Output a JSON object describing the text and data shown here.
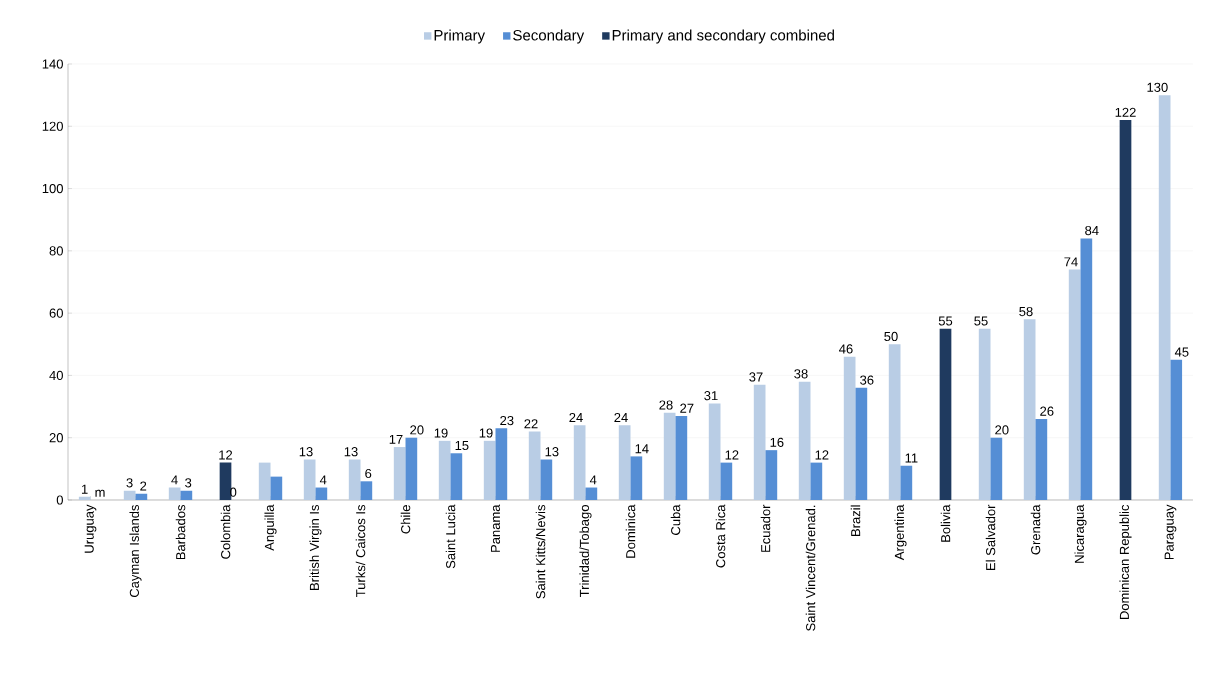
{
  "chart_data": {
    "type": "bar",
    "categories": [
      "Uruguay",
      "Cayman Islands",
      "Barbados",
      "Colombia",
      "Anguilla",
      "British Virgin Is",
      "Turks/ Caicos Is",
      "Chile",
      "Saint Lucia",
      "Panama",
      "Saint Kitts/Nevis",
      "Trinidad/Tobago",
      "Dominica",
      "Cuba",
      "Costa Rica",
      "Ecuador",
      "Saint Vincent/Grenad.",
      "Brazil",
      "Argentina",
      "Bolivia",
      "El Salvador",
      "Grenada",
      "Nicaragua",
      "Dominican Republic",
      "Paraguay"
    ],
    "series": [
      {
        "name": "Primary",
        "color": "#b9cde5",
        "values": [
          1,
          3,
          4,
          null,
          12,
          13,
          13,
          17,
          19,
          19,
          22,
          24,
          24,
          28,
          31,
          37,
          38,
          46,
          50,
          null,
          55,
          58,
          74,
          null,
          130
        ],
        "value_labels": [
          "1",
          "3",
          "4",
          null,
          null,
          "13",
          "13",
          "17",
          "19",
          "19",
          "22",
          "24",
          "24",
          "28",
          "31",
          "37",
          "38",
          "46",
          "50",
          null,
          "55",
          "58",
          "74",
          null,
          "130"
        ]
      },
      {
        "name": "Secondary",
        "color": "#558ed5",
        "values": [
          null,
          2,
          3,
          0,
          7.5,
          4,
          6,
          20,
          15,
          23,
          13,
          4,
          14,
          27,
          12,
          16,
          12,
          36,
          11,
          null,
          20,
          26,
          84,
          null,
          45
        ],
        "value_labels": [
          "m",
          "2",
          "3",
          "0",
          null,
          "4",
          "6",
          "20",
          "15",
          "23",
          "13",
          "4",
          "14",
          "27",
          "12",
          "16",
          "12",
          "36",
          "11",
          null,
          "20",
          "26",
          "84",
          null,
          "45"
        ]
      },
      {
        "name": "Primary and secondary combined",
        "color": "#1f3a5f",
        "values": [
          null,
          null,
          null,
          12,
          null,
          null,
          null,
          null,
          null,
          null,
          null,
          null,
          null,
          null,
          null,
          null,
          null,
          null,
          null,
          55,
          null,
          null,
          null,
          122,
          null
        ],
        "value_labels": [
          null,
          null,
          null,
          "12",
          null,
          null,
          null,
          null,
          null,
          null,
          null,
          null,
          null,
          null,
          null,
          null,
          null,
          null,
          null,
          "55",
          null,
          null,
          null,
          "122",
          null
        ]
      }
    ],
    "ylim": [
      0,
      140
    ],
    "yticks": [
      0,
      20,
      40,
      60,
      80,
      100,
      120,
      140
    ],
    "grid": "y",
    "legend": "top"
  }
}
